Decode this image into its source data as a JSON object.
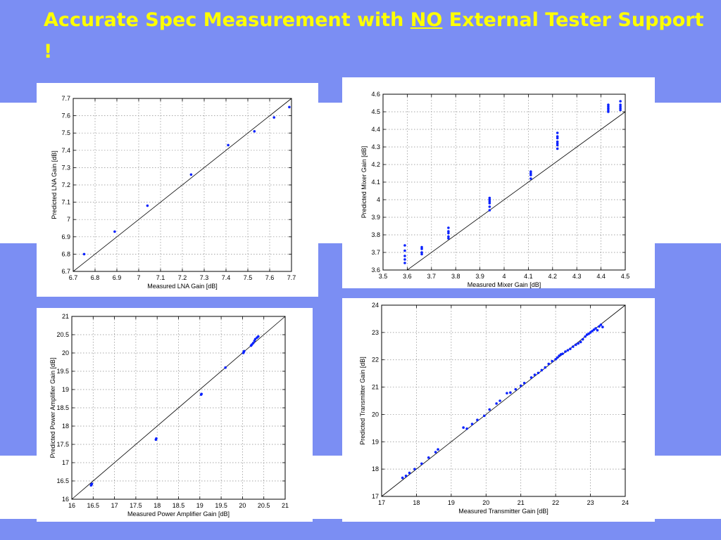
{
  "slide": {
    "title_before": "Accurate Spec Measurement with ",
    "title_emph": "NO",
    "title_after": " External Tester Support !"
  },
  "colors": {
    "background": "#7b8ef3",
    "title": "#ffff00",
    "points": "#0a22ff"
  },
  "chart_data": [
    {
      "id": "lna",
      "type": "scatter",
      "xlabel": "Measured LNA Gain [dB]",
      "ylabel": "Predicted LNA Gain [dB]",
      "xlim": [
        6.7,
        7.7
      ],
      "ylim": [
        6.7,
        7.7
      ],
      "xticks": [
        "6.7",
        "6.8",
        "6.9",
        "7",
        "7.1",
        "7.2",
        "7.3",
        "7.4",
        "7.5",
        "7.6",
        "7.7"
      ],
      "yticks": [
        "6.7",
        "6.8",
        "6.9",
        "7",
        "7.1",
        "7.2",
        "7.3",
        "7.4",
        "7.5",
        "7.6",
        "7.7"
      ],
      "grid": true,
      "reference_line": "y=x",
      "points": [
        [
          6.75,
          6.8
        ],
        [
          6.89,
          6.93
        ],
        [
          7.04,
          7.08
        ],
        [
          7.24,
          7.26
        ],
        [
          7.41,
          7.43
        ],
        [
          7.53,
          7.51
        ],
        [
          7.62,
          7.59
        ],
        [
          7.69,
          7.65
        ]
      ]
    },
    {
      "id": "mixer",
      "type": "scatter",
      "xlabel": "Measured Mixer Gain [dB]",
      "ylabel": "Predicted Mixer Gain [dB]",
      "xlim": [
        3.5,
        4.5
      ],
      "ylim": [
        3.6,
        4.6
      ],
      "xticks": [
        "3.5",
        "3.6",
        "3.7",
        "3.8",
        "3.9",
        "4",
        "4.1",
        "4.2",
        "4.3",
        "4.4",
        "4.5"
      ],
      "yticks": [
        "3.6",
        "3.7",
        "3.8",
        "3.9",
        "4",
        "4.1",
        "4.2",
        "4.3",
        "4.4",
        "4.5",
        "4.6"
      ],
      "grid": true,
      "reference_line": "y=x",
      "points": [
        [
          3.59,
          3.64
        ],
        [
          3.59,
          3.66
        ],
        [
          3.59,
          3.68
        ],
        [
          3.59,
          3.71
        ],
        [
          3.59,
          3.74
        ],
        [
          3.66,
          3.69
        ],
        [
          3.66,
          3.7
        ],
        [
          3.66,
          3.72
        ],
        [
          3.66,
          3.73
        ],
        [
          3.77,
          3.78
        ],
        [
          3.77,
          3.79
        ],
        [
          3.77,
          3.81
        ],
        [
          3.77,
          3.82
        ],
        [
          3.77,
          3.84
        ],
        [
          3.94,
          3.94
        ],
        [
          3.94,
          3.96
        ],
        [
          3.94,
          3.98
        ],
        [
          3.94,
          3.99
        ],
        [
          3.94,
          4.0
        ],
        [
          3.94,
          4.01
        ],
        [
          4.11,
          4.12
        ],
        [
          4.11,
          4.14
        ],
        [
          4.11,
          4.15
        ],
        [
          4.11,
          4.16
        ],
        [
          4.22,
          4.29
        ],
        [
          4.22,
          4.31
        ],
        [
          4.22,
          4.32
        ],
        [
          4.22,
          4.33
        ],
        [
          4.22,
          4.35
        ],
        [
          4.22,
          4.36
        ],
        [
          4.22,
          4.38
        ],
        [
          4.43,
          4.5
        ],
        [
          4.43,
          4.51
        ],
        [
          4.43,
          4.52
        ],
        [
          4.43,
          4.53
        ],
        [
          4.43,
          4.54
        ],
        [
          4.48,
          4.51
        ],
        [
          4.48,
          4.52
        ],
        [
          4.48,
          4.53
        ],
        [
          4.48,
          4.54
        ],
        [
          4.48,
          4.56
        ]
      ]
    },
    {
      "id": "pa",
      "type": "scatter",
      "xlabel": "Measured Power Amplifier Gain [dB]",
      "ylabel": "Predicted Power Amplifier Gain [dB]",
      "xlim": [
        16,
        21
      ],
      "ylim": [
        16,
        21
      ],
      "xticks": [
        "16",
        "16.5",
        "17",
        "17.5",
        "18",
        "18.5",
        "19",
        "19.5",
        "20",
        "20.5",
        "21"
      ],
      "yticks": [
        "16",
        "16.5",
        "17",
        "17.5",
        "18",
        "18.5",
        "19",
        "19.5",
        "20",
        "20.5",
        "21"
      ],
      "grid": true,
      "reference_line": "y=x",
      "points": [
        [
          16.45,
          16.38
        ],
        [
          16.46,
          16.4
        ],
        [
          16.47,
          16.42
        ],
        [
          17.97,
          17.63
        ],
        [
          17.98,
          17.66
        ],
        [
          19.03,
          18.86
        ],
        [
          19.04,
          18.88
        ],
        [
          19.6,
          19.6
        ],
        [
          20.02,
          20.0
        ],
        [
          20.03,
          20.03
        ],
        [
          20.04,
          20.05
        ],
        [
          20.2,
          20.2
        ],
        [
          20.22,
          20.23
        ],
        [
          20.25,
          20.27
        ],
        [
          20.28,
          20.33
        ],
        [
          20.3,
          20.38
        ],
        [
          20.34,
          20.42
        ],
        [
          20.37,
          20.45
        ]
      ]
    },
    {
      "id": "tx",
      "type": "scatter",
      "xlabel": "Measured Transmitter Gain [dB]",
      "ylabel": "Predicted Transmitter Gain [dB]",
      "xlim": [
        17,
        24
      ],
      "ylim": [
        17,
        24
      ],
      "xticks": [
        "17",
        "18",
        "19",
        "20",
        "21",
        "22",
        "23",
        "24"
      ],
      "yticks": [
        "17",
        "18",
        "19",
        "20",
        "21",
        "22",
        "23",
        "24"
      ],
      "grid": true,
      "reference_line": "y=x",
      "points": [
        [
          17.6,
          17.68
        ],
        [
          17.7,
          17.75
        ],
        [
          17.8,
          17.86
        ],
        [
          17.95,
          18.0
        ],
        [
          18.15,
          18.2
        ],
        [
          18.35,
          18.42
        ],
        [
          18.55,
          18.62
        ],
        [
          18.62,
          18.72
        ],
        [
          19.35,
          19.52
        ],
        [
          19.45,
          19.48
        ],
        [
          19.6,
          19.65
        ],
        [
          19.75,
          19.8
        ],
        [
          19.95,
          19.95
        ],
        [
          20.1,
          20.18
        ],
        [
          20.3,
          20.4
        ],
        [
          20.4,
          20.5
        ],
        [
          20.6,
          20.78
        ],
        [
          20.7,
          20.8
        ],
        [
          20.85,
          20.92
        ],
        [
          21.0,
          21.05
        ],
        [
          21.1,
          21.15
        ],
        [
          21.3,
          21.35
        ],
        [
          21.4,
          21.45
        ],
        [
          21.5,
          21.52
        ],
        [
          21.6,
          21.62
        ],
        [
          21.7,
          21.72
        ],
        [
          21.8,
          21.85
        ],
        [
          21.9,
          21.95
        ],
        [
          22.0,
          22.02
        ],
        [
          22.05,
          22.08
        ],
        [
          22.1,
          22.15
        ],
        [
          22.15,
          22.2
        ],
        [
          22.2,
          22.22
        ],
        [
          22.28,
          22.3
        ],
        [
          22.35,
          22.35
        ],
        [
          22.42,
          22.4
        ],
        [
          22.5,
          22.48
        ],
        [
          22.58,
          22.55
        ],
        [
          22.65,
          22.6
        ],
        [
          22.72,
          22.65
        ],
        [
          22.78,
          22.75
        ],
        [
          22.85,
          22.85
        ],
        [
          22.9,
          22.92
        ],
        [
          22.95,
          22.95
        ],
        [
          23.0,
          23.0
        ],
        [
          23.05,
          23.05
        ],
        [
          23.1,
          23.1
        ],
        [
          23.15,
          23.15
        ],
        [
          23.2,
          23.08
        ],
        [
          23.25,
          23.22
        ],
        [
          23.3,
          23.28
        ],
        [
          23.35,
          23.2
        ]
      ]
    }
  ]
}
